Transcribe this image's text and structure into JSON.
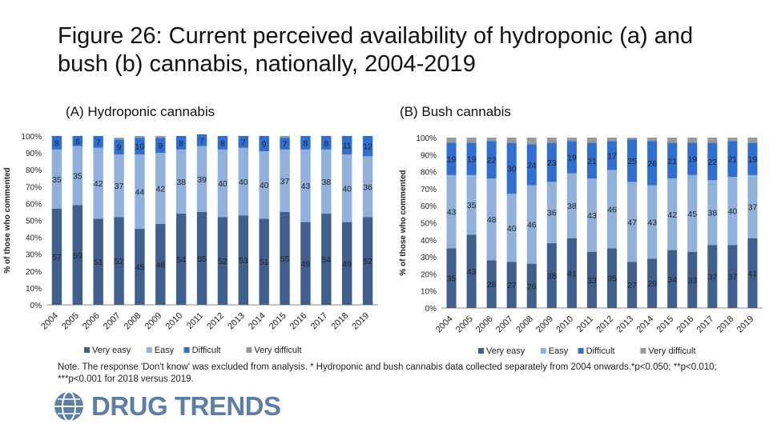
{
  "title": "Figure 26: Current perceived availability of hydroponic (a) and bush (b) cannabis, nationally, 2004-2019",
  "note": "Note. The response 'Don't know' was excluded from analysis. * Hydroponic and bush cannabis data collected separately from 2004 onwards.*p<0.050; **p<0.010; ***p<0.001 for 2018 versus 2019.",
  "logo_text": "DRUG TRENDS",
  "colors": {
    "very_easy": "#3f5f8f",
    "easy": "#8fb1dc",
    "difficult": "#2f6fd4",
    "very_difficult": "#9a9a9a"
  },
  "chart_data": [
    {
      "type": "bar",
      "stacked": true,
      "title": "(A) Hydroponic cannabis",
      "ylabel": "% of those who commented",
      "ylim": [
        0,
        100
      ],
      "yticks": [
        "0%",
        "10%",
        "20%",
        "30%",
        "40%",
        "50%",
        "60%",
        "70%",
        "80%",
        "90%",
        "100%"
      ],
      "categories": [
        "2004",
        "2005",
        "2006",
        "2007",
        "2008",
        "2009",
        "2010",
        "2011",
        "2012",
        "2013",
        "2014",
        "2015",
        "2016",
        "2017",
        "2018",
        "2019"
      ],
      "legend_position": "bottom",
      "series": [
        {
          "name": "Very easy",
          "values": [
            57,
            59,
            51,
            52,
            45,
            48,
            54,
            55,
            52,
            53,
            51,
            55,
            49,
            54,
            49,
            52
          ]
        },
        {
          "name": "Easy",
          "values": [
            35,
            35,
            42,
            37,
            44,
            42,
            38,
            39,
            40,
            40,
            40,
            37,
            43,
            38,
            40,
            36
          ]
        },
        {
          "name": "Difficult",
          "values": [
            8,
            6,
            7,
            9,
            10,
            9,
            8,
            7,
            8,
            7,
            9,
            7,
            8,
            8,
            11,
            12
          ]
        },
        {
          "name": "Very difficult",
          "values": [
            0,
            0,
            0,
            1,
            1,
            1,
            0,
            0,
            0,
            0,
            0,
            1,
            0,
            0,
            0,
            0
          ]
        }
      ],
      "labeled_series": [
        0,
        1,
        2
      ]
    },
    {
      "type": "bar",
      "stacked": true,
      "title": "(B) Bush cannabis",
      "ylabel": "% of those who commented",
      "ylim": [
        0,
        100
      ],
      "yticks": [
        "0%",
        "10%",
        "20%",
        "30%",
        "40%",
        "50%",
        "60%",
        "70%",
        "80%",
        "90%",
        "100%"
      ],
      "categories": [
        "2004",
        "2005",
        "2006",
        "2007",
        "2008",
        "2009",
        "2010",
        "2011",
        "2012",
        "2013",
        "2014",
        "2015",
        "2016",
        "2017",
        "2018",
        "2019"
      ],
      "legend_position": "bottom",
      "series": [
        {
          "name": "Very easy",
          "values": [
            35,
            43,
            28,
            27,
            26,
            38,
            41,
            33,
            35,
            27,
            29,
            34,
            33,
            37,
            37,
            41
          ]
        },
        {
          "name": "Easy",
          "values": [
            43,
            35,
            48,
            40,
            46,
            36,
            38,
            43,
            46,
            47,
            43,
            42,
            45,
            38,
            40,
            37
          ]
        },
        {
          "name": "Difficult",
          "values": [
            19,
            19,
            22,
            30,
            24,
            23,
            19,
            21,
            17,
            25,
            26,
            21,
            19,
            22,
            21,
            19
          ]
        },
        {
          "name": "Very difficult",
          "values": [
            3,
            3,
            2,
            3,
            4,
            3,
            2,
            3,
            2,
            1,
            2,
            3,
            3,
            3,
            2,
            3
          ]
        }
      ],
      "labeled_series": [
        0,
        1,
        2
      ]
    }
  ]
}
